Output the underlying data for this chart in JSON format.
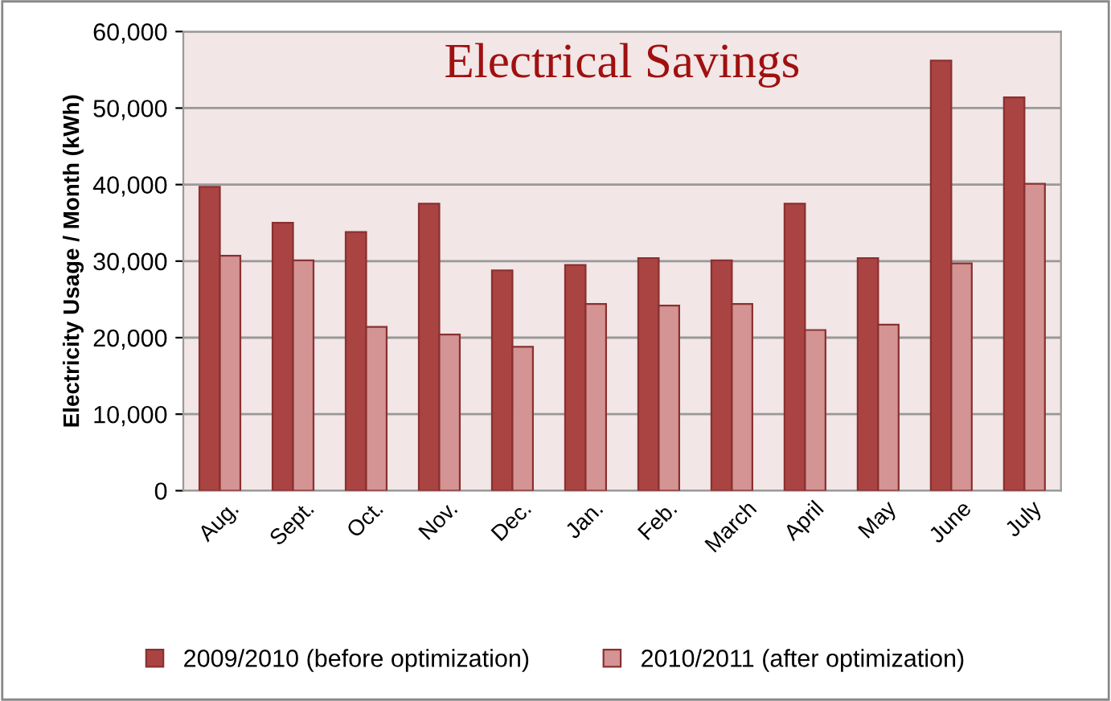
{
  "chart_data": {
    "type": "bar",
    "title": "Electrical Savings",
    "ylabel": "Electricity Usage / Month (kWh)",
    "categories": [
      "Aug.",
      "Sept.",
      "Oct.",
      "Nov.",
      "Dec.",
      "Jan.",
      "Feb.",
      "March",
      "April",
      "May",
      "June",
      "July"
    ],
    "series": [
      {
        "name": "2009/2010 (before optimization)",
        "color": "#a94442",
        "values": [
          39700,
          35000,
          33800,
          37500,
          28800,
          29500,
          30400,
          30100,
          37500,
          30400,
          56200,
          51400
        ]
      },
      {
        "name": "2010/2011 (after optimization)",
        "color": "#d49494",
        "values": [
          30700,
          30100,
          21400,
          20400,
          18800,
          24400,
          24200,
          24400,
          21000,
          21700,
          29700,
          40100
        ]
      }
    ],
    "ylim": [
      0,
      60000
    ],
    "yticks": [
      {
        "value": 0,
        "label": "0"
      },
      {
        "value": 10000,
        "label": "10,000"
      },
      {
        "value": 20000,
        "label": "20,000"
      },
      {
        "value": 30000,
        "label": "30,000"
      },
      {
        "value": 40000,
        "label": "40,000"
      },
      {
        "value": 50000,
        "label": "50,000"
      },
      {
        "value": 60000,
        "label": "60,000"
      }
    ],
    "grid": "y",
    "legend": "bottom"
  }
}
